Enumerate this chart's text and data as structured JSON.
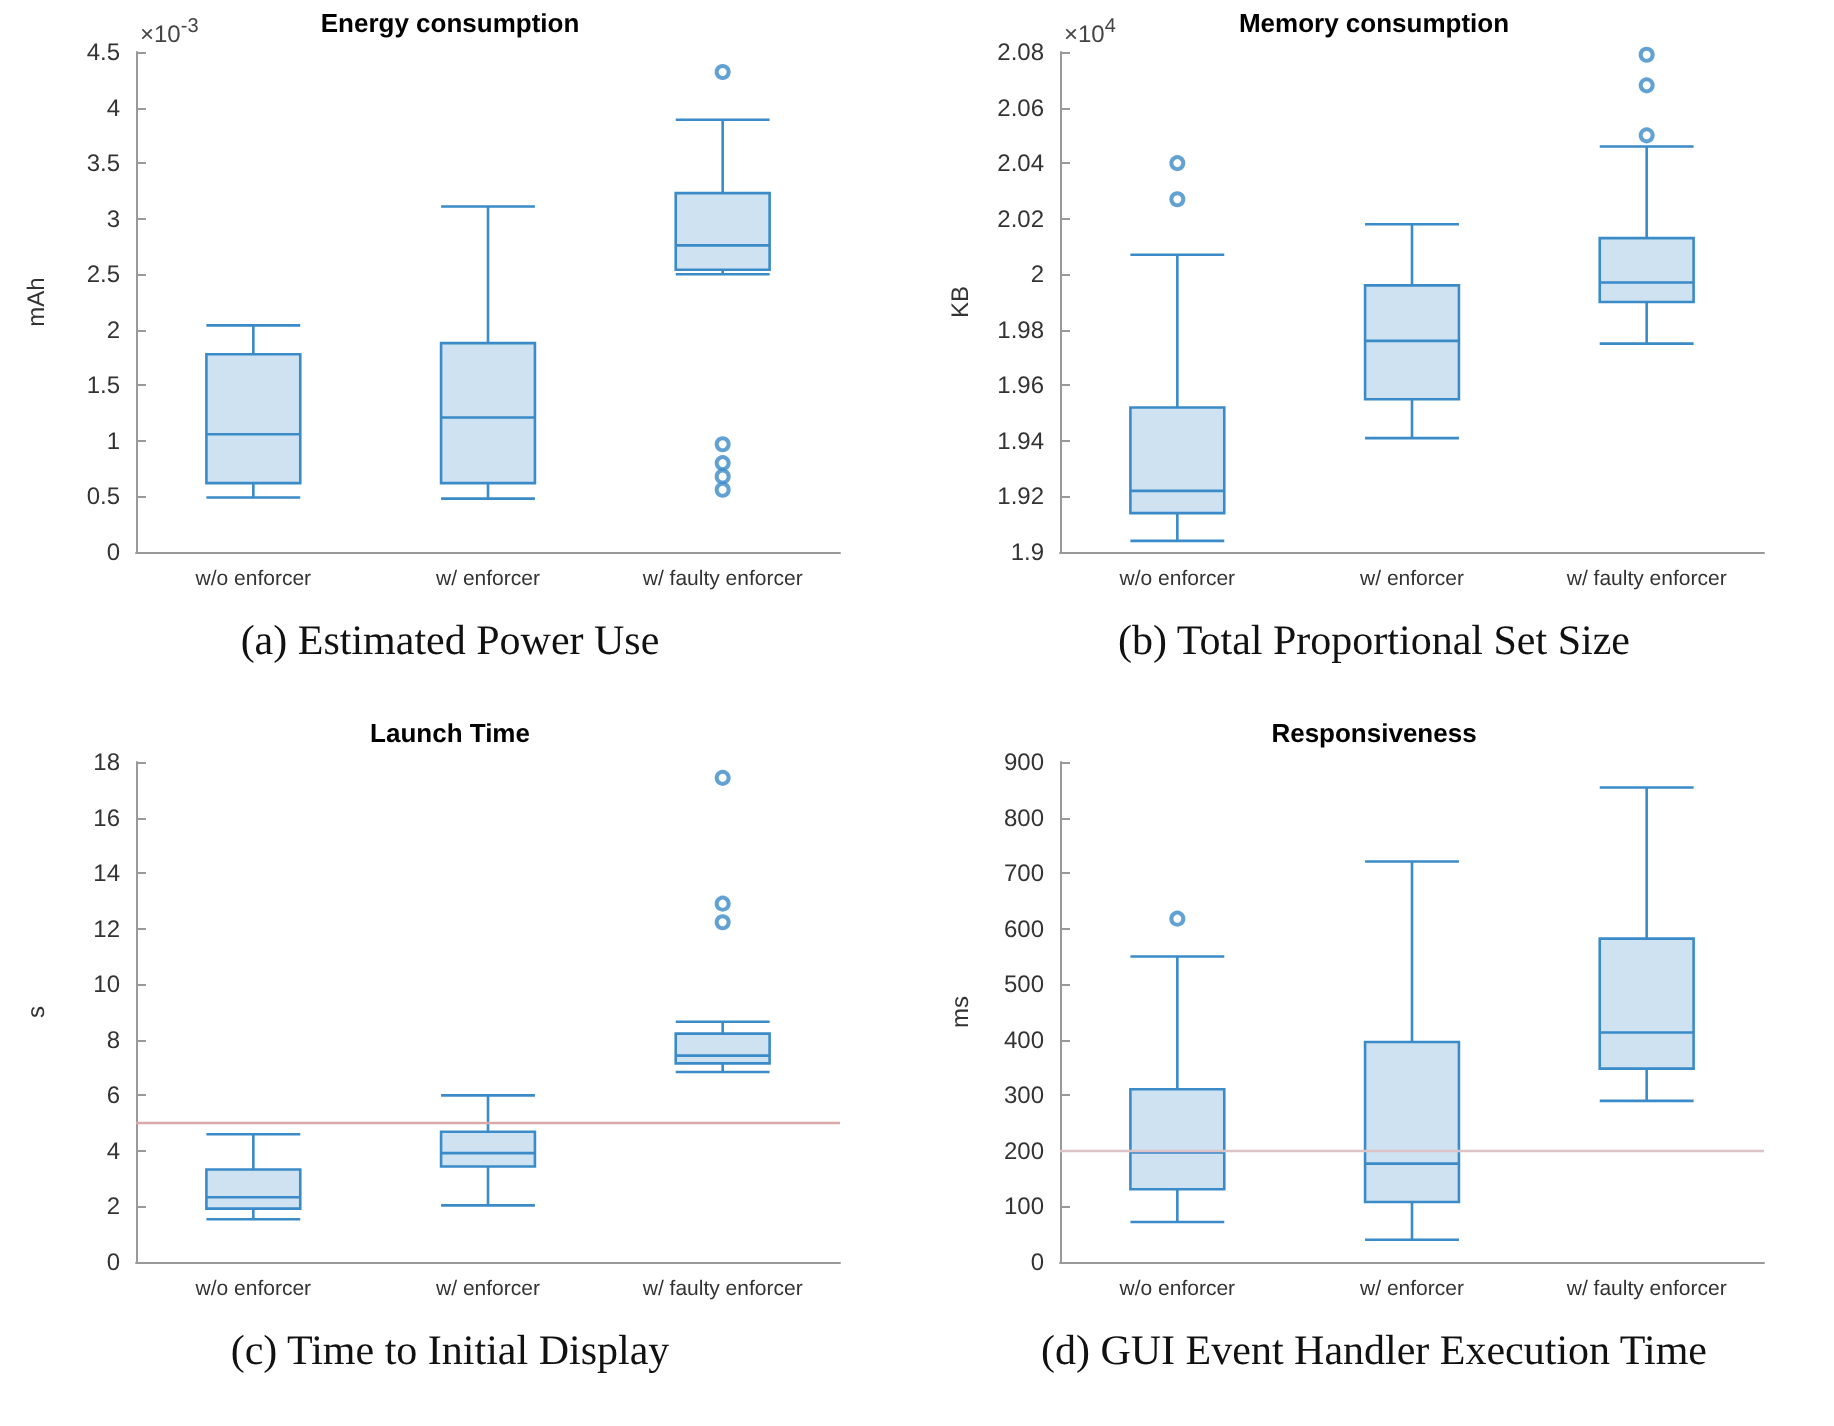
{
  "chart_data": [
    {
      "type": "box",
      "title": "Energy consumption",
      "ylabel": "mAh",
      "categories": [
        "w/o enforcer",
        "w/ enforcer",
        "w/ faulty enforcer"
      ],
      "series": [
        {
          "color": "#3b8bc8",
          "boxes": [
            {
              "low": 0.49,
              "q1": 0.62,
              "median": 1.06,
              "q3": 1.78,
              "high": 2.04
            },
            {
              "low": 0.48,
              "q1": 0.62,
              "median": 1.21,
              "q3": 1.88,
              "high": 3.11
            },
            {
              "low": 2.5,
              "q1": 2.54,
              "median": 2.76,
              "q3": 3.23,
              "high": 3.89,
              "outliers": [
                4.32,
                0.97,
                0.8,
                0.68,
                0.56
              ]
            }
          ]
        }
      ],
      "ylim": [
        0,
        4.5
      ],
      "yticks": [
        0,
        0.5,
        1,
        1.5,
        2,
        2.5,
        3,
        3.5,
        4,
        4.5
      ],
      "grid": false,
      "annotations": [
        "×10$^{-3}$",
        "(a) Estimated Power Use"
      ]
    },
    {
      "type": "box",
      "title": "Memory consumption",
      "ylabel": "KB",
      "categories": [
        "w/o enforcer",
        "w/ enforcer",
        "w/ faulty enforcer"
      ],
      "series": [
        {
          "color": "#3b8bc8",
          "boxes": [
            {
              "low": 1.904,
              "q1": 1.914,
              "median": 1.922,
              "q3": 1.952,
              "high": 2.007,
              "outliers": [
                2.04,
                2.027
              ]
            },
            {
              "low": 1.941,
              "q1": 1.955,
              "median": 1.976,
              "q3": 1.996,
              "high": 2.018
            },
            {
              "low": 1.975,
              "q1": 1.99,
              "median": 1.997,
              "q3": 2.013,
              "high": 2.046,
              "outliers": [
                2.05,
                2.068,
                2.079
              ]
            }
          ]
        }
      ],
      "ylim": [
        1.9,
        2.08
      ],
      "yticks": [
        1.9,
        1.92,
        1.94,
        1.96,
        1.98,
        2,
        2.02,
        2.04,
        2.06,
        2.08
      ],
      "grid": false,
      "annotations": [
        "×10$^{4}$",
        "(b) Total Proportional Set Size"
      ]
    },
    {
      "type": "box",
      "title": "Launch Time",
      "ylabel": "s",
      "categories": [
        "w/o enforcer",
        "w/ enforcer",
        "w/ faulty enforcer"
      ],
      "series": [
        {
          "color": "#3b8bc8",
          "boxes": [
            {
              "low": 1.54,
              "q1": 1.92,
              "median": 2.33,
              "q3": 3.33,
              "high": 4.6
            },
            {
              "low": 2.04,
              "q1": 3.44,
              "median": 3.92,
              "q3": 4.69,
              "high": 6
            },
            {
              "low": 6.84,
              "q1": 7.15,
              "median": 7.43,
              "q3": 8.22,
              "high": 8.65,
              "outliers": [
                17.43,
                12.9,
                12.23
              ]
            }
          ]
        }
      ],
      "ylim": [
        0,
        18
      ],
      "yticks": [
        0,
        2,
        4,
        6,
        8,
        10,
        12,
        14,
        16,
        18
      ],
      "grid": false,
      "ref_lines": [
        {
          "axis": "y",
          "value": 5,
          "label": null,
          "color": "#d9a9a9"
        }
      ],
      "annotations": [
        "(c) Time to Initial Display"
      ]
    },
    {
      "type": "box",
      "title": "Responsiveness",
      "ylabel": "ms",
      "categories": [
        "w/o enforcer",
        "w/ enforcer",
        "w/ faulty enforcer"
      ],
      "series": [
        {
          "color": "#3b8bc8",
          "boxes": [
            {
              "low": 72,
              "q1": 131,
              "median": 197,
              "q3": 311,
              "high": 550,
              "outliers": [
                618
              ]
            },
            {
              "low": 40,
              "q1": 108,
              "median": 177,
              "q3": 396,
              "high": 721
            },
            {
              "low": 290,
              "q1": 348,
              "median": 413,
              "q3": 582,
              "high": 854
            }
          ]
        }
      ],
      "ylim": [
        0,
        900
      ],
      "yticks": [
        0,
        100,
        200,
        300,
        400,
        500,
        600,
        700,
        800,
        900
      ],
      "grid": false,
      "ref_lines": [
        {
          "axis": "y",
          "value": 200,
          "label": null,
          "color": "#dcc4c6"
        }
      ],
      "annotations": [
        "(d) GUI Event Handler Execution Time"
      ]
    }
  ]
}
